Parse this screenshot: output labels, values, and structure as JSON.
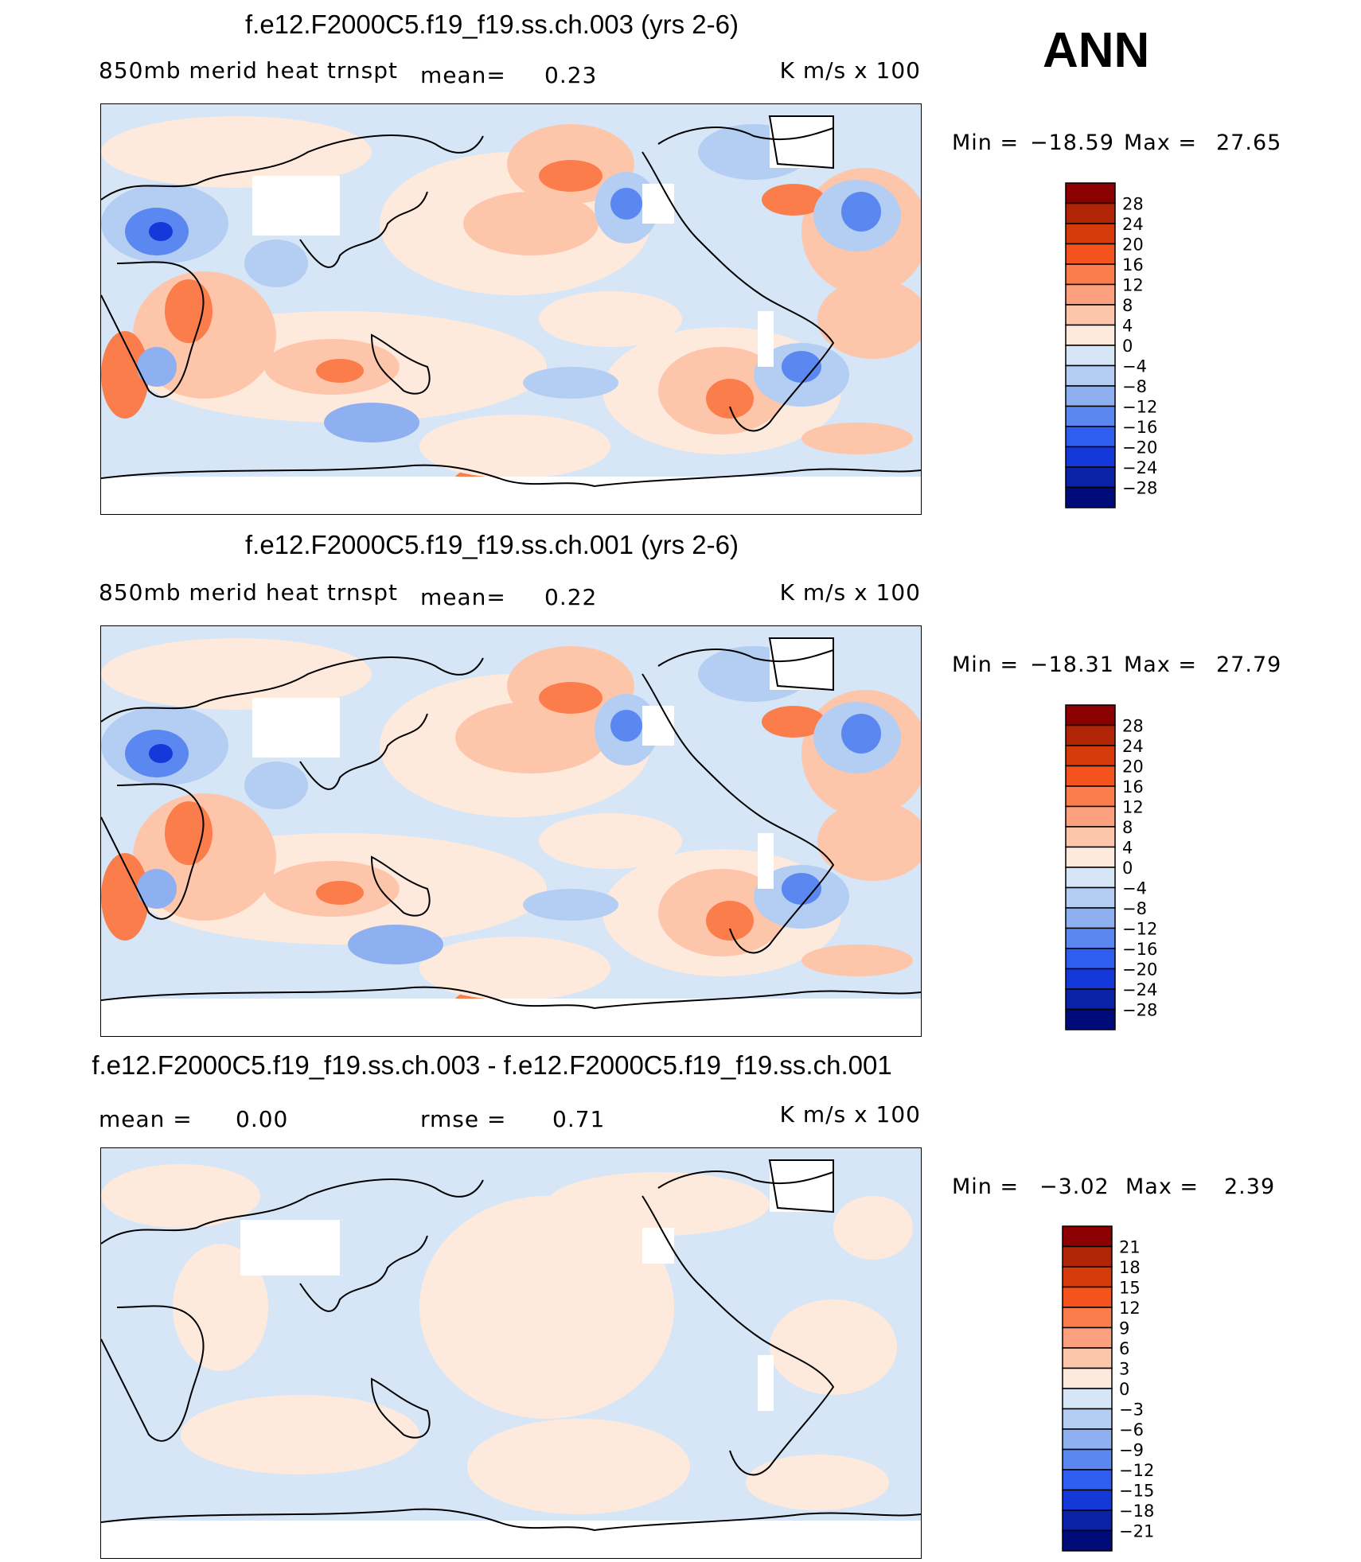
{
  "season_label": "ANN",
  "units": "K m/s x 100",
  "colors": {
    "ocean_bg": "#d6e6f7",
    "land_outline": "#000000",
    "palette_warm": [
      "#8b0000",
      "#b02505",
      "#d63a0a",
      "#f5531d",
      "#fb7d4b",
      "#fca080",
      "#fdc6ab",
      "#feeadd"
    ],
    "palette_cool": [
      "#d6e6f7",
      "#b3cdf3",
      "#8eb0f1",
      "#5a88f0",
      "#2f5df0",
      "#1539d9",
      "#0a23a6",
      "#000b7a"
    ]
  },
  "chart_data": [
    {
      "type": "heatmap",
      "title": "f.e12.F2000C5.f19_f19.ss.ch.003 (yrs 2-6)",
      "variable_label": "850mb merid heat trnspt",
      "mean_label": "mean=",
      "mean_value": "0.23",
      "units": "K m/s x 100",
      "min_label": "Min =",
      "min_value": "−18.59",
      "max_label": "Max =",
      "max_value": "27.65",
      "colorbar_levels": [
        "28",
        "24",
        "20",
        "16",
        "12",
        "8",
        "4",
        "0",
        "−4",
        "−8",
        "−12",
        "−16",
        "−20",
        "−24",
        "−28"
      ],
      "colorbar_colors": [
        "#8b0000",
        "#b02505",
        "#d63a0a",
        "#f5531d",
        "#fb7d4b",
        "#fca080",
        "#fdc6ab",
        "#feeadd",
        "#d6e6f7",
        "#b3cdf3",
        "#8eb0f1",
        "#5a88f0",
        "#2f5df0",
        "#1539d9",
        "#0a23a6",
        "#000b7a"
      ]
    },
    {
      "type": "heatmap",
      "title": "f.e12.F2000C5.f19_f19.ss.ch.001 (yrs 2-6)",
      "variable_label": "850mb merid heat trnspt",
      "mean_label": "mean=",
      "mean_value": "0.22",
      "units": "K m/s x 100",
      "min_label": "Min =",
      "min_value": "−18.31",
      "max_label": "Max =",
      "max_value": "27.79",
      "colorbar_levels": [
        "28",
        "24",
        "20",
        "16",
        "12",
        "8",
        "4",
        "0",
        "−4",
        "−8",
        "−12",
        "−16",
        "−20",
        "−24",
        "−28"
      ],
      "colorbar_colors": [
        "#8b0000",
        "#b02505",
        "#d63a0a",
        "#f5531d",
        "#fb7d4b",
        "#fca080",
        "#fdc6ab",
        "#feeadd",
        "#d6e6f7",
        "#b3cdf3",
        "#8eb0f1",
        "#5a88f0",
        "#2f5df0",
        "#1539d9",
        "#0a23a6",
        "#000b7a"
      ]
    },
    {
      "type": "heatmap",
      "title": "f.e12.F2000C5.f19_f19.ss.ch.003 - f.e12.F2000C5.f19_f19.ss.ch.001",
      "mean_label": "mean =",
      "mean_value": "0.00",
      "rmse_label": "rmse =",
      "rmse_value": "0.71",
      "units": "K m/s x 100",
      "min_label": "Min =",
      "min_value": "−3.02",
      "max_label": "Max =",
      "max_value": "2.39",
      "colorbar_levels": [
        "21",
        "18",
        "15",
        "12",
        "9",
        "6",
        "3",
        "0",
        "−3",
        "−6",
        "−9",
        "−12",
        "−15",
        "−18",
        "−21"
      ],
      "colorbar_colors": [
        "#8b0000",
        "#b02505",
        "#d63a0a",
        "#f5531d",
        "#fb7d4b",
        "#fca080",
        "#fdc6ab",
        "#feeadd",
        "#d6e6f7",
        "#b3cdf3",
        "#8eb0f1",
        "#5a88f0",
        "#2f5df0",
        "#1539d9",
        "#0a23a6",
        "#000b7a"
      ]
    }
  ]
}
